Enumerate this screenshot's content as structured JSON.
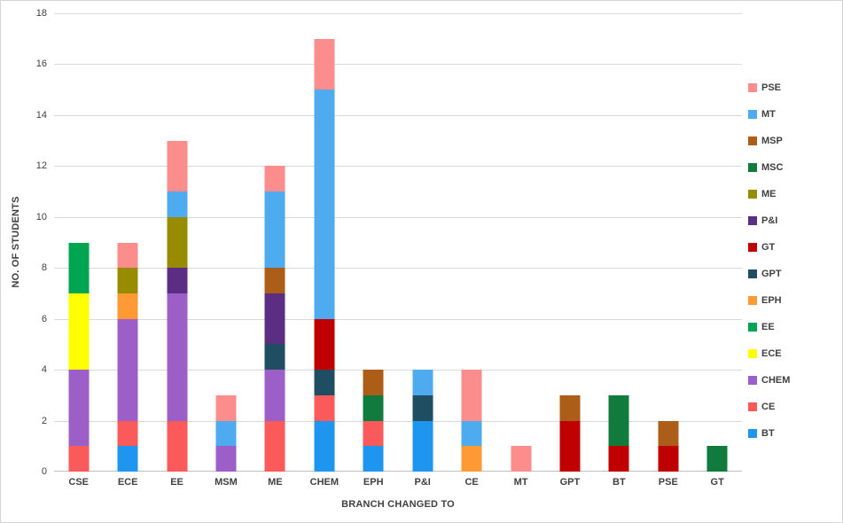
{
  "chart_data": {
    "type": "bar",
    "stacked": true,
    "title": "",
    "xlabel": "BRANCH CHANGED TO",
    "ylabel": "NO. OF STUDENTS",
    "ylim": [
      0,
      18
    ],
    "ytick_step": 2,
    "yticks": [
      0,
      2,
      4,
      6,
      8,
      10,
      12,
      14,
      16,
      18
    ],
    "grid": true,
    "legend_position": "right",
    "categories": [
      "CSE",
      "ECE",
      "EE",
      "MSM",
      "ME",
      "CHEM",
      "EPH",
      "P&I",
      "CE",
      "MT",
      "GPT",
      "BT",
      "PSE",
      "GT"
    ],
    "series": [
      {
        "name": "BT",
        "color": "#1E96F0",
        "values": [
          0,
          1,
          0,
          0,
          0,
          2,
          1,
          2,
          0,
          0,
          0,
          0,
          0,
          0
        ]
      },
      {
        "name": "CE",
        "color": "#FB5A5A",
        "values": [
          1,
          1,
          2,
          0,
          2,
          1,
          1,
          0,
          0,
          0,
          0,
          0,
          0,
          0
        ]
      },
      {
        "name": "CHEM",
        "color": "#9C5FC7",
        "values": [
          3,
          4,
          5,
          1,
          2,
          0,
          0,
          0,
          0,
          0,
          0,
          0,
          0,
          0
        ]
      },
      {
        "name": "ECE",
        "color": "#FFFF00",
        "values": [
          3,
          0,
          0,
          0,
          0,
          0,
          0,
          0,
          0,
          0,
          0,
          0,
          0,
          0
        ]
      },
      {
        "name": "EE",
        "color": "#00A551",
        "values": [
          2,
          0,
          0,
          0,
          0,
          0,
          0,
          0,
          0,
          0,
          0,
          0,
          0,
          0
        ]
      },
      {
        "name": "EPH",
        "color": "#FF9933",
        "values": [
          0,
          1,
          0,
          0,
          0,
          0,
          0,
          0,
          1,
          0,
          0,
          0,
          0,
          0
        ]
      },
      {
        "name": "GPT",
        "color": "#1F4E63",
        "values": [
          0,
          0,
          0,
          0,
          1,
          1,
          0,
          1,
          0,
          0,
          0,
          0,
          0,
          0
        ]
      },
      {
        "name": "GT",
        "color": "#C00000",
        "values": [
          0,
          0,
          0,
          0,
          0,
          2,
          0,
          0,
          0,
          0,
          2,
          1,
          1,
          0
        ]
      },
      {
        "name": "P&I",
        "color": "#5C2E83",
        "values": [
          0,
          0,
          1,
          0,
          2,
          0,
          0,
          0,
          0,
          0,
          0,
          0,
          0,
          0
        ]
      },
      {
        "name": "ME",
        "color": "#978C00",
        "values": [
          0,
          1,
          2,
          0,
          0,
          0,
          0,
          0,
          0,
          0,
          0,
          0,
          0,
          0
        ]
      },
      {
        "name": "MSC",
        "color": "#117A3D",
        "values": [
          0,
          0,
          0,
          0,
          0,
          0,
          1,
          0,
          0,
          0,
          0,
          2,
          0,
          1
        ]
      },
      {
        "name": "MSP",
        "color": "#AC5D17",
        "values": [
          0,
          0,
          0,
          0,
          1,
          0,
          1,
          0,
          0,
          0,
          1,
          0,
          1,
          0
        ]
      },
      {
        "name": "MT",
        "color": "#4FABF0",
        "values": [
          0,
          0,
          1,
          1,
          3,
          9,
          0,
          1,
          1,
          0,
          0,
          0,
          0,
          0
        ]
      },
      {
        "name": "PSE",
        "color": "#FB8D8D",
        "values": [
          0,
          1,
          2,
          1,
          1,
          2,
          0,
          0,
          2,
          1,
          0,
          0,
          0,
          0
        ]
      }
    ],
    "totals": {
      "CSE": 9,
      "ECE": 9,
      "EE": 13,
      "MSM": 3,
      "ME": 12,
      "CHEM": 17,
      "EPH": 4,
      "P&I": 4,
      "CE": 4,
      "MT": 1,
      "GPT": 3,
      "BT": 3,
      "PSE": 2,
      "GT": 1
    },
    "legend_order_top_to_bottom": [
      "PSE",
      "MT",
      "MSP",
      "MSC",
      "ME",
      "P&I",
      "GT",
      "GPT",
      "EPH",
      "EE",
      "ECE",
      "CHEM",
      "CE",
      "BT"
    ]
  },
  "colors": {
    "gridline": "#d9d9d9",
    "axis_line": "#bfbfbf",
    "text": "#404040",
    "background": "#ffffff"
  }
}
